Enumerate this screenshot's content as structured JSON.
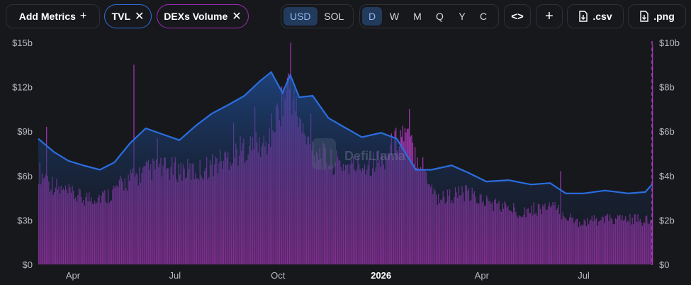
{
  "toolbar": {
    "add_metrics": "Add Metrics",
    "pills": [
      {
        "label": "TVL",
        "color": "#2f6fe0"
      },
      {
        "label": "DEXs Volume",
        "color": "#9d2bb5"
      }
    ],
    "currencies": [
      "USD",
      "SOL"
    ],
    "active_currency": "USD",
    "periods": [
      "D",
      "W",
      "M",
      "Q",
      "Y",
      "C"
    ],
    "active_period": "D",
    "csv_label": ".csv",
    "png_label": ".png"
  },
  "watermark": "DefiLlama",
  "colors": {
    "tvl": "#2a6ee0",
    "volume": "#b73cc9",
    "background": "#17181c"
  },
  "chart_data": {
    "type": "area",
    "x_ticks": [
      "Apr",
      "Jul",
      "Oct",
      "2026",
      "Apr",
      "Jul"
    ],
    "x_ticks_bold": [
      false,
      false,
      false,
      true,
      false,
      false
    ],
    "x_range": [
      "2025-03-01",
      "2026-08-31"
    ],
    "y_left": {
      "ticks": [
        "$0",
        "$3b",
        "$6b",
        "$9b",
        "$12b",
        "$15b"
      ],
      "range": [
        0,
        15
      ]
    },
    "y_right": {
      "ticks": [
        "$0",
        "$2b",
        "$4b",
        "$6b",
        "$8b",
        "$10b"
      ],
      "range": [
        0,
        10
      ]
    },
    "series": [
      {
        "name": "TVL",
        "axis": "left",
        "unit": "$b",
        "points": [
          [
            "2025-03-01",
            8.5
          ],
          [
            "2025-03-15",
            7.6
          ],
          [
            "2025-03-28",
            7.0
          ],
          [
            "2025-04-10",
            6.7
          ],
          [
            "2025-04-25",
            6.4
          ],
          [
            "2025-05-08",
            6.9
          ],
          [
            "2025-05-22",
            8.2
          ],
          [
            "2025-06-05",
            9.2
          ],
          [
            "2025-06-20",
            8.8
          ],
          [
            "2025-07-05",
            8.4
          ],
          [
            "2025-07-20",
            9.4
          ],
          [
            "2025-08-03",
            10.2
          ],
          [
            "2025-08-18",
            10.8
          ],
          [
            "2025-09-01",
            11.4
          ],
          [
            "2025-09-15",
            12.4
          ],
          [
            "2025-09-25",
            13.0
          ],
          [
            "2025-10-05",
            11.6
          ],
          [
            "2025-10-12",
            12.8
          ],
          [
            "2025-10-20",
            11.3
          ],
          [
            "2025-11-01",
            11.4
          ],
          [
            "2025-11-15",
            9.9
          ],
          [
            "2025-12-01",
            9.2
          ],
          [
            "2025-12-15",
            8.6
          ],
          [
            "2026-01-01",
            8.9
          ],
          [
            "2026-01-15",
            8.5
          ],
          [
            "2026-02-01",
            6.4
          ],
          [
            "2026-02-15",
            6.4
          ],
          [
            "2026-03-05",
            6.7
          ],
          [
            "2026-03-20",
            6.2
          ],
          [
            "2026-04-05",
            5.6
          ],
          [
            "2026-04-25",
            5.7
          ],
          [
            "2026-05-15",
            5.4
          ],
          [
            "2026-06-01",
            5.5
          ],
          [
            "2026-06-15",
            4.8
          ],
          [
            "2026-07-01",
            4.8
          ],
          [
            "2026-07-20",
            5.0
          ],
          [
            "2026-08-10",
            4.8
          ],
          [
            "2026-08-25",
            4.9
          ],
          [
            "2026-08-31",
            5.4
          ]
        ]
      },
      {
        "name": "DEXs Volume",
        "axis": "right",
        "unit": "$b",
        "points": [
          [
            "2025-03-01",
            3.5
          ],
          [
            "2025-03-20",
            2.8
          ],
          [
            "2025-04-10",
            2.5
          ],
          [
            "2025-05-01",
            2.6
          ],
          [
            "2025-05-20",
            3.2
          ],
          [
            "2025-06-10",
            3.6
          ],
          [
            "2025-07-01",
            3.6
          ],
          [
            "2025-07-20",
            3.5
          ],
          [
            "2025-08-10",
            3.9
          ],
          [
            "2025-09-01",
            4.4
          ],
          [
            "2025-09-20",
            4.5
          ],
          [
            "2025-10-10",
            6.8
          ],
          [
            "2025-10-25",
            4.7
          ],
          [
            "2025-11-15",
            3.9
          ],
          [
            "2025-12-05",
            3.7
          ],
          [
            "2026-01-01",
            3.9
          ],
          [
            "2026-01-20",
            5.0
          ],
          [
            "2026-02-05",
            3.9
          ],
          [
            "2026-02-20",
            2.5
          ],
          [
            "2026-03-15",
            2.7
          ],
          [
            "2026-04-10",
            2.3
          ],
          [
            "2026-05-05",
            2.0
          ],
          [
            "2026-06-01",
            2.2
          ],
          [
            "2026-06-25",
            1.6
          ],
          [
            "2026-07-20",
            1.7
          ],
          [
            "2026-08-15",
            1.7
          ],
          [
            "2026-08-31",
            1.6
          ]
        ],
        "spikes": [
          [
            "2025-03-08",
            6.2
          ],
          [
            "2025-05-25",
            9.0
          ],
          [
            "2025-06-15",
            5.7
          ],
          [
            "2025-08-22",
            6.4
          ],
          [
            "2025-09-10",
            7.1
          ],
          [
            "2025-10-12",
            10.0
          ],
          [
            "2025-10-30",
            6.8
          ],
          [
            "2026-01-26",
            7.0
          ],
          [
            "2026-06-10",
            4.2
          ],
          [
            "2026-08-31",
            9.9
          ]
        ]
      }
    ],
    "legend": "none",
    "grid": false
  }
}
